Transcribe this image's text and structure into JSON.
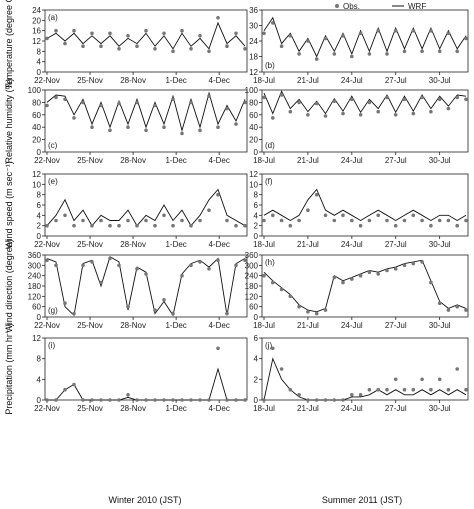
{
  "chart_data": {
    "type": "line",
    "legend": {
      "placement": "top-right",
      "entries": [
        "Obs.",
        "WRF"
      ]
    },
    "x_titles": [
      "Winter 2010 (JST)",
      "Summer 2011 (JST)"
    ],
    "x_ticks": {
      "left": [
        "22-Nov",
        "25-Nov",
        "28-Nov",
        "1-Dec",
        "4-Dec"
      ],
      "right": [
        "18-Jul",
        "21-Jul",
        "24-Jul",
        "27-Jul",
        "30-Jul"
      ]
    },
    "rows": [
      {
        "ylabel": "Temperature (degree C)",
        "ylim": [
          0,
          24
        ],
        "yticks": [
          0,
          4,
          8,
          12,
          16,
          20,
          24
        ],
        "ylim_right": [
          12,
          36
        ],
        "yticks_right": [
          12,
          18,
          24,
          30,
          36
        ],
        "panel_labels": [
          "(a)",
          "(b)"
        ],
        "left": {
          "obs": [
            13,
            16,
            11,
            16,
            10,
            15,
            10,
            15,
            9,
            14,
            10,
            16,
            9,
            15,
            8,
            16,
            9,
            14,
            8,
            21,
            10,
            15,
            9
          ],
          "wrf": [
            13,
            15,
            12,
            15,
            11,
            14,
            11,
            14,
            10,
            13,
            11,
            15,
            10,
            14,
            9,
            15,
            10,
            13,
            9,
            19,
            11,
            14,
            10
          ]
        },
        "right": {
          "obs": [
            27,
            31,
            22,
            26,
            19,
            24,
            17,
            25,
            19,
            26,
            18,
            27,
            19,
            28,
            19,
            28,
            20,
            28,
            20,
            28,
            20,
            27,
            20,
            25
          ],
          "wrf": [
            28,
            33,
            23,
            27,
            20,
            25,
            18,
            26,
            20,
            27,
            19,
            28,
            20,
            29,
            20,
            29,
            21,
            29,
            21,
            29,
            21,
            28,
            21,
            26
          ]
        }
      },
      {
        "ylabel": "Relative humidity (%)",
        "ylim": [
          0,
          100
        ],
        "yticks": [
          0,
          20,
          40,
          60,
          80,
          100
        ],
        "ylim_right": [
          0,
          100
        ],
        "yticks_right": [
          0,
          20,
          40,
          60,
          80,
          100
        ],
        "panel_labels": [
          "(c)",
          "(d)"
        ],
        "left": {
          "obs": [
            75,
            88,
            85,
            55,
            80,
            40,
            75,
            35,
            78,
            40,
            80,
            35,
            75,
            40,
            85,
            30,
            80,
            35,
            90,
            40,
            70,
            45,
            80
          ],
          "wrf": [
            80,
            92,
            90,
            60,
            85,
            45,
            80,
            40,
            82,
            45,
            85,
            40,
            80,
            45,
            90,
            35,
            85,
            40,
            95,
            45,
            75,
            50,
            85
          ]
        },
        "right": {
          "obs": [
            88,
            55,
            92,
            65,
            80,
            60,
            78,
            58,
            82,
            62,
            85,
            60,
            80,
            65,
            88,
            60,
            85,
            62,
            88,
            65,
            85,
            70,
            88,
            85
          ],
          "wrf": [
            95,
            62,
            98,
            70,
            85,
            65,
            82,
            62,
            86,
            66,
            90,
            64,
            85,
            70,
            92,
            64,
            90,
            66,
            92,
            70,
            90,
            74,
            92,
            90
          ]
        }
      },
      {
        "ylabel": "Wind speed (m sec⁻¹)",
        "ylim": [
          0,
          12
        ],
        "yticks": [
          0,
          2,
          4,
          6,
          8,
          10,
          12
        ],
        "ylim_right": [
          0,
          12
        ],
        "yticks_right": [
          0,
          2,
          4,
          6,
          8,
          10,
          12
        ],
        "panel_labels": [
          "(e)",
          "(f)"
        ],
        "left": {
          "obs": [
            2,
            3,
            4,
            2,
            3,
            2,
            3,
            2,
            2,
            3,
            2,
            3,
            2,
            4,
            2,
            3,
            2,
            3,
            5,
            8,
            3,
            2,
            2
          ],
          "wrf": [
            2,
            4,
            7,
            3,
            5,
            2,
            4,
            3,
            3,
            5,
            2,
            4,
            3,
            6,
            3,
            5,
            2,
            4,
            7,
            9,
            4,
            3,
            2
          ],
          "peak": [
            "",
            "",
            "",
            "",
            "",
            "",
            "",
            "",
            "",
            "",
            "",
            "",
            "",
            "",
            "",
            "",
            "",
            "",
            "",
            "",
            "",
            "",
            ""
          ]
        },
        "right": {
          "obs": [
            3,
            4,
            3,
            2,
            3,
            5,
            8,
            4,
            3,
            4,
            3,
            2,
            3,
            4,
            3,
            2,
            3,
            4,
            3,
            2,
            3,
            3,
            2,
            3
          ],
          "wrf": [
            4,
            5,
            4,
            3,
            4,
            7,
            9,
            5,
            4,
            5,
            4,
            3,
            4,
            5,
            4,
            3,
            4,
            5,
            4,
            3,
            4,
            4,
            3,
            4
          ]
        }
      },
      {
        "ylabel": "Wind direction (degree)",
        "ylim": [
          0,
          360
        ],
        "yticks": [
          0,
          60,
          120,
          180,
          240,
          300,
          360
        ],
        "ylim_right": [
          0,
          360
        ],
        "yticks_right": [
          0,
          60,
          120,
          180,
          240,
          300,
          360
        ],
        "panel_labels": [
          "(g)",
          "(h)"
        ],
        "left": {
          "obs": [
            330,
            300,
            80,
            20,
            300,
            320,
            200,
            340,
            300,
            60,
            280,
            250,
            40,
            100,
            20,
            240,
            300,
            320,
            280,
            330,
            20,
            300,
            330
          ],
          "wrf": [
            340,
            320,
            60,
            10,
            310,
            330,
            180,
            350,
            320,
            40,
            290,
            260,
            20,
            90,
            10,
            250,
            310,
            330,
            290,
            340,
            10,
            310,
            340
          ]
        },
        "right": {
          "obs": [
            240,
            200,
            160,
            120,
            60,
            30,
            20,
            40,
            230,
            200,
            220,
            240,
            260,
            250,
            270,
            280,
            300,
            310,
            320,
            200,
            80,
            40,
            60,
            40
          ],
          "wrf": [
            260,
            210,
            170,
            130,
            70,
            40,
            30,
            50,
            240,
            210,
            230,
            250,
            270,
            260,
            280,
            290,
            310,
            320,
            330,
            210,
            90,
            50,
            70,
            50
          ]
        }
      },
      {
        "ylabel": "Precipitation (mm hr⁻¹)",
        "ylim": [
          0,
          12
        ],
        "yticks": [
          0,
          4,
          8,
          12
        ],
        "ylim_right": [
          0,
          6
        ],
        "yticks_right": [
          0,
          2,
          4,
          6
        ],
        "panel_labels": [
          "(i)",
          "(j)"
        ],
        "left": {
          "obs": [
            0,
            0,
            2,
            3,
            0,
            0,
            0,
            0,
            0,
            1,
            0,
            0,
            0,
            0,
            0,
            0,
            0,
            0,
            0,
            10,
            0,
            0,
            0
          ],
          "wrf": [
            0,
            0,
            2,
            3,
            0,
            0,
            0,
            0,
            0,
            0.5,
            0,
            0,
            0,
            0,
            0,
            0,
            0,
            0,
            0,
            6,
            0,
            0,
            0
          ]
        },
        "right": {
          "obs": [
            0,
            5,
            3,
            1,
            0.5,
            0,
            0,
            0,
            0,
            0,
            0.5,
            0.5,
            1,
            1,
            1,
            2,
            1,
            1,
            2,
            1,
            2,
            1,
            3,
            1
          ],
          "wrf": [
            0,
            4,
            2,
            1,
            0.3,
            0,
            0,
            0,
            0,
            0,
            0.3,
            0.3,
            0.5,
            1,
            0.5,
            1,
            0.5,
            0.5,
            1,
            0.5,
            1,
            0.5,
            1,
            0.5
          ]
        }
      }
    ]
  }
}
